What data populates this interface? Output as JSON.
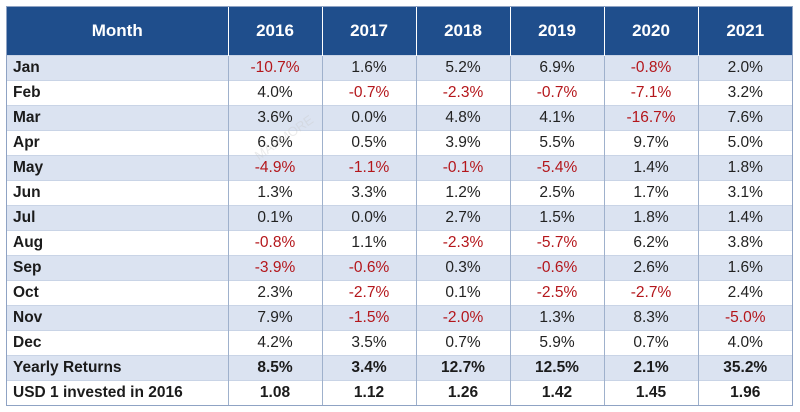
{
  "chart_data": {
    "type": "table",
    "columns": [
      "Month",
      "2016",
      "2017",
      "2018",
      "2019",
      "2020",
      "2021"
    ],
    "rows": [
      {
        "label": "Jan",
        "values": [
          "-10.7%",
          "1.6%",
          "5.2%",
          "6.9%",
          "-0.8%",
          "2.0%"
        ]
      },
      {
        "label": "Feb",
        "values": [
          "4.0%",
          "-0.7%",
          "-2.3%",
          "-0.7%",
          "-7.1%",
          "3.2%"
        ]
      },
      {
        "label": "Mar",
        "values": [
          "3.6%",
          "0.0%",
          "4.8%",
          "4.1%",
          "-16.7%",
          "7.6%"
        ]
      },
      {
        "label": "Apr",
        "values": [
          "6.6%",
          "0.5%",
          "3.9%",
          "5.5%",
          "9.7%",
          "5.0%"
        ]
      },
      {
        "label": "May",
        "values": [
          "-4.9%",
          "-1.1%",
          "-0.1%",
          "-5.4%",
          "1.4%",
          "1.8%"
        ]
      },
      {
        "label": "Jun",
        "values": [
          "1.3%",
          "3.3%",
          "1.2%",
          "2.5%",
          "1.7%",
          "3.1%"
        ]
      },
      {
        "label": "Jul",
        "values": [
          "0.1%",
          "0.0%",
          "2.7%",
          "1.5%",
          "1.8%",
          "1.4%"
        ]
      },
      {
        "label": "Aug",
        "values": [
          "-0.8%",
          "1.1%",
          "-2.3%",
          "-5.7%",
          "6.2%",
          "3.8%"
        ]
      },
      {
        "label": "Sep",
        "values": [
          "-3.9%",
          "-0.6%",
          "0.3%",
          "-0.6%",
          "2.6%",
          "1.6%"
        ]
      },
      {
        "label": "Oct",
        "values": [
          "2.3%",
          "-2.7%",
          "0.1%",
          "-2.5%",
          "-2.7%",
          "2.4%"
        ]
      },
      {
        "label": "Nov",
        "values": [
          "7.9%",
          "-1.5%",
          "-2.0%",
          "1.3%",
          "8.3%",
          "-5.0%"
        ]
      },
      {
        "label": "Dec",
        "values": [
          "4.2%",
          "3.5%",
          "0.7%",
          "5.9%",
          "0.7%",
          "4.0%"
        ]
      }
    ],
    "summary_rows": [
      {
        "label": "Yearly Returns",
        "values": [
          "8.5%",
          "3.4%",
          "12.7%",
          "12.5%",
          "2.1%",
          "35.2%"
        ]
      },
      {
        "label": "USD 1 invested in 2016",
        "values": [
          "1.08",
          "1.12",
          "1.26",
          "1.42",
          "1.45",
          "1.96"
        ]
      }
    ]
  },
  "colors": {
    "header_bg": "#1f4e8c",
    "header_text": "#ffffff",
    "band": "#dbe3f1",
    "negative": "#b4161b"
  },
  "watermark": "MARMORE"
}
